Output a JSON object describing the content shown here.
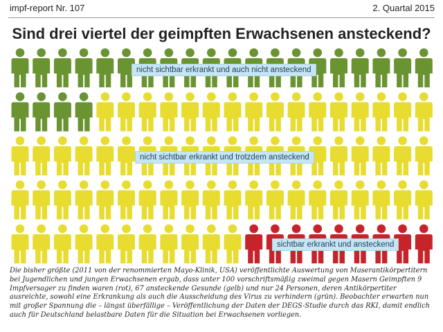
{
  "header": {
    "issue": "impf-report Nr. 107",
    "quarter": "2. Quartal 2015",
    "title": "Sind drei viertel der geimpften Erwachsenen ansteckend?"
  },
  "chart_data": {
    "type": "pictogram",
    "total": 100,
    "columns": 20,
    "groups": [
      {
        "key": "green",
        "count": 24,
        "color": "#6a9331",
        "label": "nicht sichtbar erkrankt und auch nicht ansteckend"
      },
      {
        "key": "yellow",
        "count": 67,
        "color": "#e7dc2f",
        "label": "nicht sichtbar erkrankt und trotzdem ansteckend"
      },
      {
        "key": "red",
        "count": 9,
        "color": "#c6242a",
        "label": "sichtbar erkrankt und ansteckend"
      }
    ]
  },
  "caption": "Die bisher größte (2011 von der renommierten Mayo-Klinik, USA) veröffentlichte Auswertung von Maserantikörpertitern bei Jugendlichen und jungen Erwachsenen ergab, dass unter  100 vorschriftsmäßig zweimal gegen Masern Geimpften 9 Impfversager zu finden waren (rot), 67 ansteckende Gesunde  (gelb) und nur 24 Personen, deren Antikörpertiter ausreichte, sowohl eine Erkrankung als auch die Ausscheidung des Virus zu verhindern (grün). Beobachter erwarten nun mit  großer Spannung die – längst überfällige – Veröffentlichung der Daten der DEGS-Studie durch das RKI, damit endlich auch für Deutschland belastbare Daten für die Situation bei Erwachsenen vorliegen."
}
